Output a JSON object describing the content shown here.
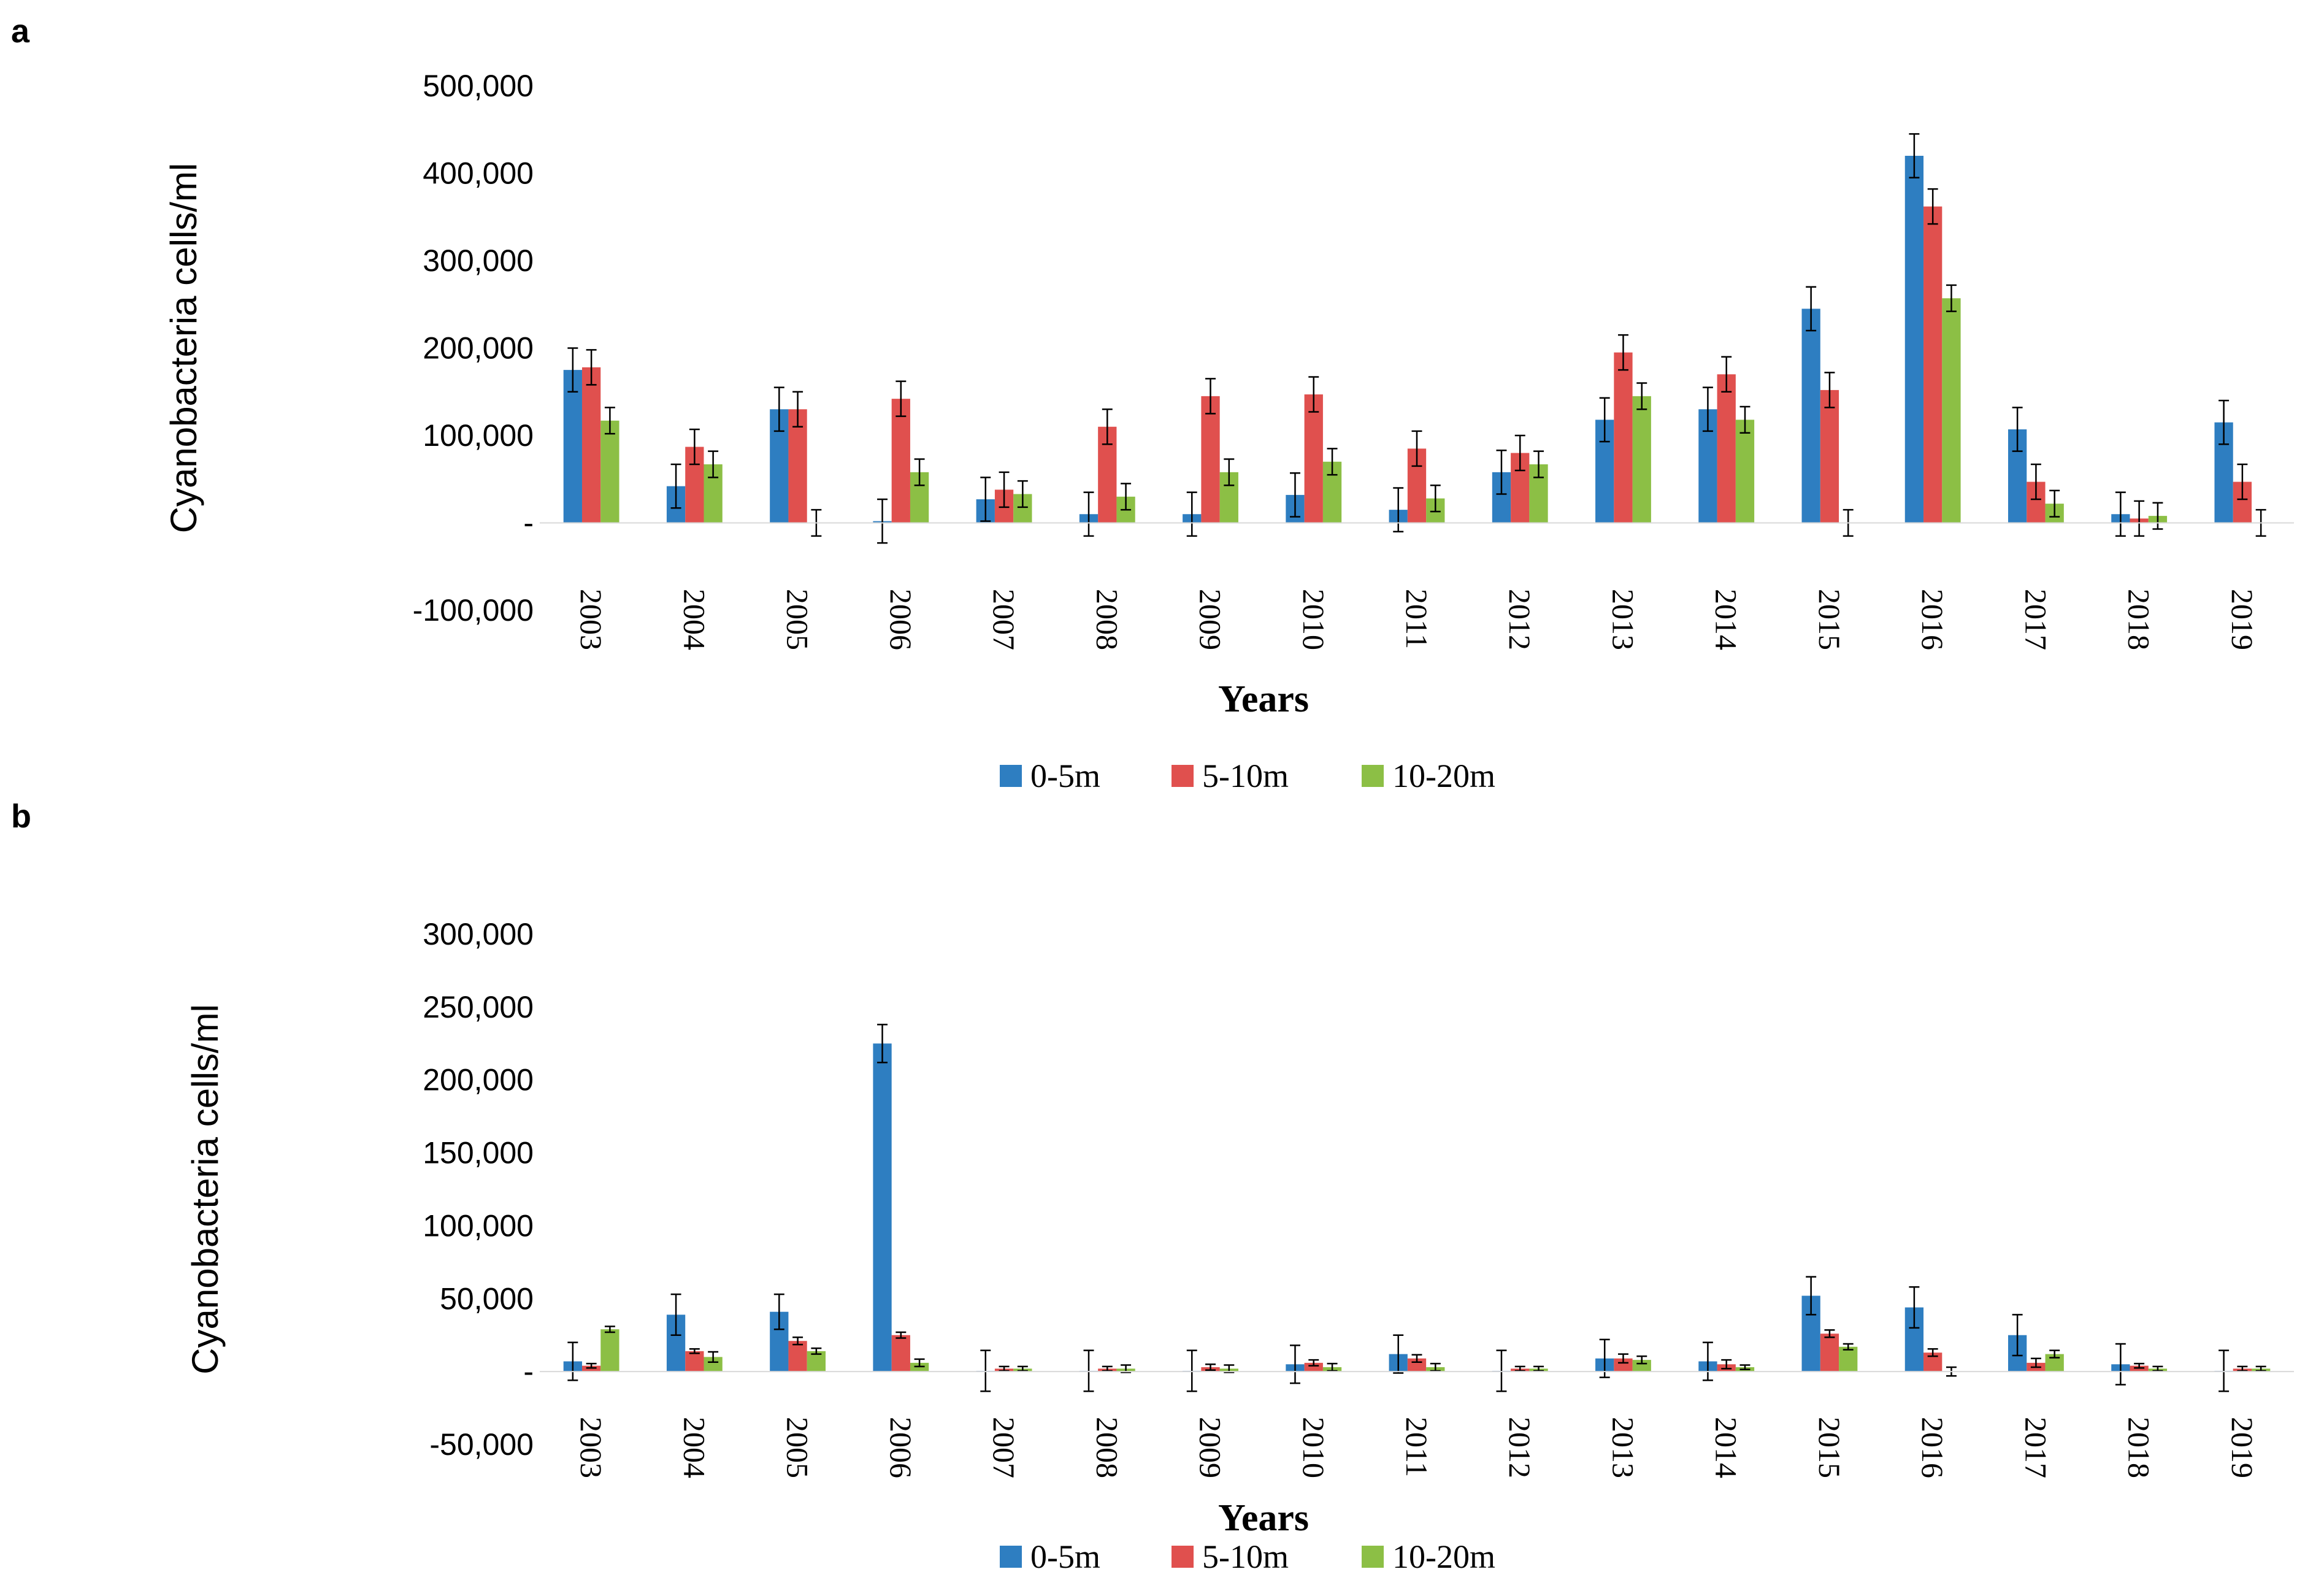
{
  "figure_labels": {
    "a": "a",
    "b": "b"
  },
  "colors": {
    "s0": "#2E7EC1",
    "s1": "#E0504E",
    "s2": "#8CBF45"
  },
  "chart_data": [
    {
      "type": "bar",
      "panel": "a",
      "title": "",
      "xlabel": "Years",
      "ylabel": "Cyanobacteria cells/ml",
      "ylim": [
        -100000,
        500000
      ],
      "yticks": [
        -100000,
        0,
        100000,
        200000,
        300000,
        400000,
        500000
      ],
      "ytick_labels": [
        "-100,000",
        "-",
        "100,000",
        "200,000",
        "300,000",
        "400,000",
        "500,000"
      ],
      "categories": [
        "2003",
        "2004",
        "2005",
        "2006",
        "2007",
        "2008",
        "2009",
        "2010",
        "2011",
        "2012",
        "2013",
        "2014",
        "2015",
        "2016",
        "2017",
        "2018",
        "2019"
      ],
      "series": [
        {
          "name": "0-5m",
          "values": [
            175000,
            42000,
            130000,
            2000,
            27000,
            10000,
            10000,
            32000,
            15000,
            58000,
            118000,
            130000,
            245000,
            420000,
            107000,
            10000,
            115000
          ],
          "errors": [
            25000,
            25000,
            25000,
            25000,
            25000,
            25000,
            25000,
            25000,
            25000,
            25000,
            25000,
            25000,
            25000,
            25000,
            25000,
            25000,
            25000
          ]
        },
        {
          "name": "5-10m",
          "values": [
            178000,
            87000,
            130000,
            142000,
            38000,
            110000,
            145000,
            147000,
            85000,
            80000,
            195000,
            170000,
            152000,
            362000,
            47000,
            5000,
            47000
          ],
          "errors": [
            20000,
            20000,
            20000,
            20000,
            20000,
            20000,
            20000,
            20000,
            20000,
            20000,
            20000,
            20000,
            20000,
            20000,
            20000,
            20000,
            20000
          ]
        },
        {
          "name": "10-20m",
          "values": [
            117000,
            67000,
            0,
            58000,
            33000,
            30000,
            58000,
            70000,
            28000,
            67000,
            145000,
            118000,
            0,
            257000,
            22000,
            8000,
            0
          ],
          "errors": [
            15000,
            15000,
            15000,
            15000,
            15000,
            15000,
            15000,
            15000,
            15000,
            15000,
            15000,
            15000,
            15000,
            15000,
            15000,
            15000,
            15000
          ]
        }
      ],
      "legend": [
        "0-5m",
        "5-10m",
        "10-20m"
      ],
      "legend_position": "bottom",
      "grid": true
    },
    {
      "type": "bar",
      "panel": "b",
      "title": "",
      "xlabel": "Years",
      "ylabel": "Cyanobacteria cells/ml",
      "ylim": [
        -50000,
        300000
      ],
      "yticks": [
        -50000,
        0,
        50000,
        100000,
        150000,
        200000,
        250000,
        300000
      ],
      "ytick_labels": [
        "-50,000",
        "-",
        "50,000",
        "100,000",
        "150,000",
        "200,000",
        "250,000",
        "300,000"
      ],
      "categories": [
        "2003",
        "2004",
        "2005",
        "2006",
        "2007",
        "2008",
        "2009",
        "2010",
        "2011",
        "2012",
        "2013",
        "2014",
        "2015",
        "2016",
        "2017",
        "2018",
        "2019"
      ],
      "series": [
        {
          "name": "0-5m",
          "values": [
            7000,
            39000,
            41000,
            225000,
            500,
            500,
            500,
            5000,
            12000,
            500,
            9000,
            7000,
            52000,
            44000,
            25000,
            5000,
            500
          ],
          "errors": [
            13000,
            14000,
            12000,
            13000,
            14000,
            14000,
            14000,
            13000,
            13000,
            14000,
            13000,
            13000,
            13000,
            14000,
            14000,
            14000,
            14000
          ]
        },
        {
          "name": "5-10m",
          "values": [
            4000,
            14000,
            21000,
            25000,
            2000,
            2000,
            3000,
            6000,
            9000,
            2000,
            9000,
            5000,
            26000,
            13000,
            6000,
            4000,
            2000
          ],
          "errors": [
            1500,
            1500,
            2500,
            2000,
            1500,
            1500,
            2000,
            2000,
            2500,
            1500,
            3000,
            3000,
            2500,
            2500,
            3000,
            1500,
            1500
          ]
        },
        {
          "name": "10-20m",
          "values": [
            29000,
            10000,
            14000,
            6000,
            2000,
            2000,
            2000,
            3000,
            3000,
            2000,
            8000,
            3000,
            17000,
            0,
            12000,
            2000,
            2000
          ],
          "errors": [
            2000,
            3500,
            2000,
            2500,
            1500,
            2500,
            2500,
            2500,
            2500,
            1500,
            2500,
            1500,
            2000,
            3000,
            2500,
            1500,
            1500
          ]
        }
      ],
      "legend": [
        "0-5m",
        "5-10m",
        "10-20m"
      ],
      "legend_position": "bottom",
      "grid": true
    }
  ]
}
